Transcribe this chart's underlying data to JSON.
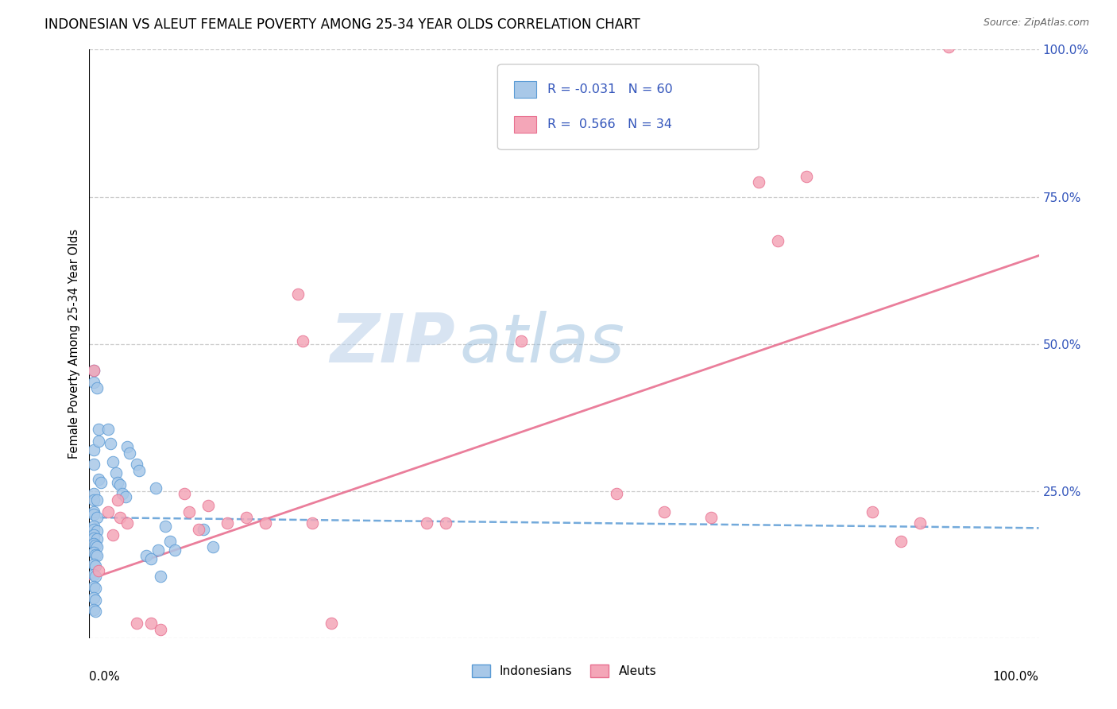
{
  "title": "INDONESIAN VS ALEUT FEMALE POVERTY AMONG 25-34 YEAR OLDS CORRELATION CHART",
  "source": "Source: ZipAtlas.com",
  "ylabel": "Female Poverty Among 25-34 Year Olds",
  "xlim": [
    0.0,
    1.0
  ],
  "ylim": [
    0.0,
    1.0
  ],
  "yticks": [
    0.0,
    0.25,
    0.5,
    0.75,
    1.0
  ],
  "ytick_labels_right": [
    "",
    "25.0%",
    "50.0%",
    "75.0%",
    "100.0%"
  ],
  "legend_label1": "Indonesians",
  "legend_label2": "Aleuts",
  "indonesian_color": "#a8c8e8",
  "aleut_color": "#f4a6b8",
  "indonesian_line_color": "#5b9bd5",
  "aleut_line_color": "#e87090",
  "blue_text_color": "#3355bb",
  "watermark_color": "#c5d8ee",
  "indo_trend_intercept": 0.205,
  "indo_trend_slope": -0.018,
  "aleut_trend_intercept": 0.1,
  "aleut_trend_slope": 0.55,
  "indonesian_points": [
    [
      0.005,
      0.455
    ],
    [
      0.005,
      0.435
    ],
    [
      0.008,
      0.425
    ],
    [
      0.005,
      0.32
    ],
    [
      0.01,
      0.355
    ],
    [
      0.01,
      0.335
    ],
    [
      0.005,
      0.295
    ],
    [
      0.01,
      0.27
    ],
    [
      0.012,
      0.265
    ],
    [
      0.005,
      0.245
    ],
    [
      0.005,
      0.235
    ],
    [
      0.008,
      0.235
    ],
    [
      0.005,
      0.215
    ],
    [
      0.005,
      0.21
    ],
    [
      0.008,
      0.205
    ],
    [
      0.005,
      0.19
    ],
    [
      0.005,
      0.185
    ],
    [
      0.008,
      0.182
    ],
    [
      0.005,
      0.175
    ],
    [
      0.005,
      0.17
    ],
    [
      0.008,
      0.168
    ],
    [
      0.005,
      0.16
    ],
    [
      0.006,
      0.158
    ],
    [
      0.008,
      0.155
    ],
    [
      0.005,
      0.145
    ],
    [
      0.006,
      0.142
    ],
    [
      0.008,
      0.14
    ],
    [
      0.005,
      0.125
    ],
    [
      0.006,
      0.122
    ],
    [
      0.005,
      0.108
    ],
    [
      0.006,
      0.105
    ],
    [
      0.005,
      0.088
    ],
    [
      0.006,
      0.085
    ],
    [
      0.005,
      0.068
    ],
    [
      0.006,
      0.065
    ],
    [
      0.005,
      0.048
    ],
    [
      0.006,
      0.045
    ],
    [
      0.02,
      0.355
    ],
    [
      0.022,
      0.33
    ],
    [
      0.025,
      0.3
    ],
    [
      0.028,
      0.28
    ],
    [
      0.03,
      0.265
    ],
    [
      0.032,
      0.26
    ],
    [
      0.035,
      0.245
    ],
    [
      0.038,
      0.24
    ],
    [
      0.04,
      0.325
    ],
    [
      0.042,
      0.315
    ],
    [
      0.05,
      0.295
    ],
    [
      0.052,
      0.285
    ],
    [
      0.06,
      0.14
    ],
    [
      0.065,
      0.135
    ],
    [
      0.07,
      0.255
    ],
    [
      0.072,
      0.15
    ],
    [
      0.075,
      0.105
    ],
    [
      0.08,
      0.19
    ],
    [
      0.085,
      0.165
    ],
    [
      0.09,
      0.15
    ],
    [
      0.12,
      0.185
    ],
    [
      0.13,
      0.155
    ]
  ],
  "aleut_points": [
    [
      0.005,
      0.455
    ],
    [
      0.01,
      0.115
    ],
    [
      0.02,
      0.215
    ],
    [
      0.025,
      0.175
    ],
    [
      0.03,
      0.235
    ],
    [
      0.032,
      0.205
    ],
    [
      0.04,
      0.195
    ],
    [
      0.05,
      0.025
    ],
    [
      0.065,
      0.025
    ],
    [
      0.075,
      0.015
    ],
    [
      0.1,
      0.245
    ],
    [
      0.105,
      0.215
    ],
    [
      0.115,
      0.185
    ],
    [
      0.125,
      0.225
    ],
    [
      0.145,
      0.195
    ],
    [
      0.165,
      0.205
    ],
    [
      0.185,
      0.195
    ],
    [
      0.22,
      0.585
    ],
    [
      0.225,
      0.505
    ],
    [
      0.235,
      0.195
    ],
    [
      0.255,
      0.025
    ],
    [
      0.355,
      0.195
    ],
    [
      0.375,
      0.195
    ],
    [
      0.455,
      0.505
    ],
    [
      0.555,
      0.245
    ],
    [
      0.605,
      0.215
    ],
    [
      0.655,
      0.205
    ],
    [
      0.705,
      0.775
    ],
    [
      0.725,
      0.675
    ],
    [
      0.755,
      0.785
    ],
    [
      0.825,
      0.215
    ],
    [
      0.855,
      0.165
    ],
    [
      0.875,
      0.195
    ],
    [
      0.905,
      1.005
    ]
  ]
}
